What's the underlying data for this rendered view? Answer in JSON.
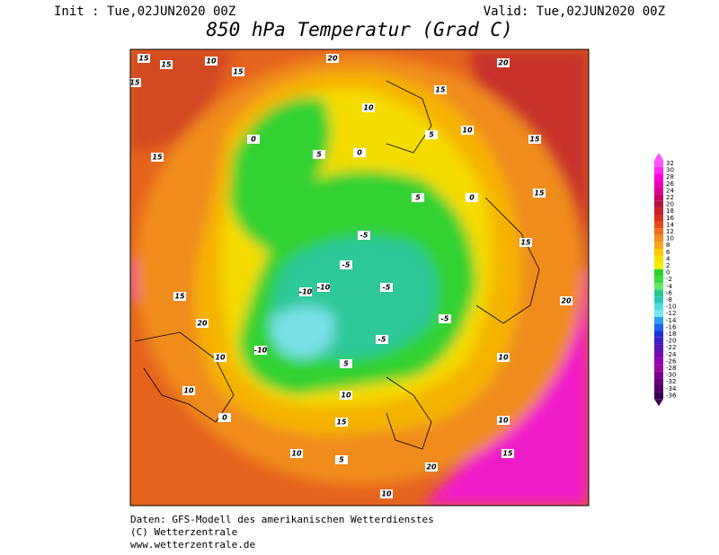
{
  "header": {
    "init": "Init : Tue,02JUN2020 00Z",
    "valid": "Valid: Tue,02JUN2020 00Z",
    "title": "850 hPa Temperatur (Grad C)"
  },
  "map": {
    "contour_labels": [
      15,
      15,
      15,
      10,
      15,
      20,
      20,
      15,
      15,
      10,
      5,
      0,
      0,
      5,
      10,
      0,
      -5,
      -5,
      -10,
      -10,
      -5,
      -10,
      -5,
      -5,
      0,
      5,
      10,
      15,
      10,
      5,
      10,
      15,
      20,
      20,
      15,
      10,
      15,
      10,
      5,
      10,
      15,
      10,
      20,
      15
    ]
  },
  "colorbar": {
    "levels": [
      32,
      30,
      28,
      26,
      24,
      22,
      20,
      18,
      16,
      14,
      12,
      10,
      8,
      6,
      4,
      2,
      0,
      -2,
      -4,
      -6,
      -8,
      -10,
      -12,
      -14,
      -16,
      -18,
      -20,
      -22,
      -24,
      -26,
      -28,
      -30,
      -32,
      -34,
      -36
    ],
    "colors": [
      "#ff50ff",
      "#ff28f0",
      "#ff00dc",
      "#f000b4",
      "#dc0096",
      "#c80064",
      "#b4143c",
      "#c81e28",
      "#dc2d1e",
      "#e64b1e",
      "#f06e1e",
      "#f58c1e",
      "#faa51e",
      "#fac800",
      "#f5e100",
      "#f0f000",
      "#28d228",
      "#3cdc3c",
      "#64e664",
      "#28c88c",
      "#28c8b4",
      "#50dcdc",
      "#78e6f0",
      "#28a0f0",
      "#1e64f0",
      "#1e32dc",
      "#3c1ec8",
      "#5a14b4",
      "#780ab4",
      "#9600b4",
      "#a000a0",
      "#78008c",
      "#640078",
      "#500064",
      "#3c0050"
    ]
  },
  "footer": {
    "line1": "Daten: GFS-Modell des amerikanischen Wetterdienstes",
    "line2": "(C) Wetterzentrale",
    "line3": "www.wetterzentrale.de"
  }
}
